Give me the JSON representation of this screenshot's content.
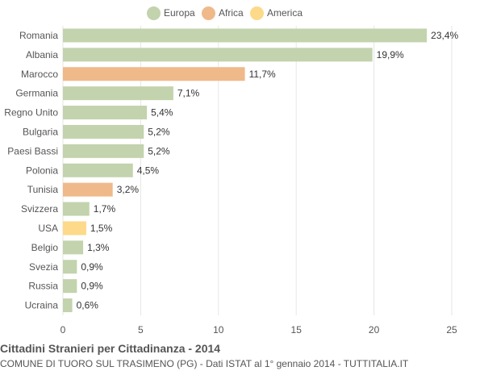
{
  "chart_data": {
    "type": "bar",
    "orientation": "horizontal",
    "title": "Cittadini Stranieri per Cittadinanza - 2014",
    "subtitle": "COMUNE DI TUORO SUL TRASIMENO (PG) - Dati ISTAT al 1° gennaio 2014 - TUTTITALIA.IT",
    "categories": [
      "Romania",
      "Albania",
      "Marocco",
      "Germania",
      "Regno Unito",
      "Bulgaria",
      "Paesi Bassi",
      "Polonia",
      "Tunisia",
      "Svizzera",
      "USA",
      "Belgio",
      "Svezia",
      "Russia",
      "Ucraina"
    ],
    "values": [
      23.4,
      19.9,
      11.7,
      7.1,
      5.4,
      5.2,
      5.2,
      4.5,
      3.2,
      1.7,
      1.5,
      1.3,
      0.9,
      0.9,
      0.6
    ],
    "labels": [
      "23,4%",
      "19,9%",
      "11,7%",
      "7,1%",
      "5,4%",
      "5,2%",
      "5,2%",
      "4,5%",
      "3,2%",
      "1,7%",
      "1,5%",
      "1,3%",
      "0,9%",
      "0,9%",
      "0,6%"
    ],
    "groups": [
      "Europa",
      "Europa",
      "Africa",
      "Europa",
      "Europa",
      "Europa",
      "Europa",
      "Europa",
      "Africa",
      "Europa",
      "America",
      "Europa",
      "Europa",
      "Europa",
      "Europa"
    ],
    "legend": [
      {
        "name": "Europa",
        "color": "#c2d3ad"
      },
      {
        "name": "Africa",
        "color": "#f0b98a"
      },
      {
        "name": "America",
        "color": "#fdd98a"
      }
    ],
    "xlim": [
      0,
      25
    ],
    "xticks": [
      0,
      5,
      10,
      15,
      20,
      25
    ],
    "xlabel": "",
    "ylabel": "",
    "grid": true,
    "legend_position": "top-center"
  }
}
